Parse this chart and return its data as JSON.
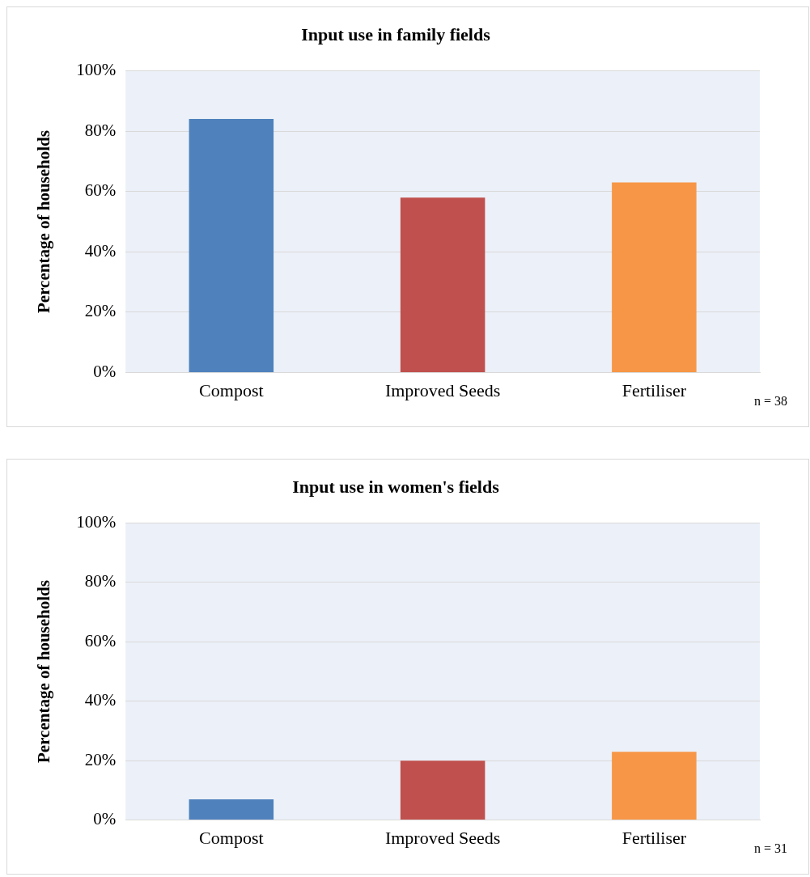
{
  "chart_data": [
    {
      "type": "bar",
      "title": "Input use in family fields",
      "ylabel": "Percentage of households",
      "categories": [
        "Compost",
        "Improved Seeds",
        "Fertiliser"
      ],
      "values": [
        84,
        58,
        63
      ],
      "colors": [
        "#4f81bd",
        "#c0504d",
        "#f79646"
      ],
      "ylim": [
        0,
        100
      ],
      "yticks": [
        {
          "value": 0,
          "label": "0%"
        },
        {
          "value": 20,
          "label": "20%"
        },
        {
          "value": 40,
          "label": "40%"
        },
        {
          "value": 60,
          "label": "60%"
        },
        {
          "value": 80,
          "label": "80%"
        },
        {
          "value": 100,
          "label": "100%"
        }
      ],
      "grid": "y",
      "legend": false,
      "annotations": [
        "n = 38"
      ]
    },
    {
      "type": "bar",
      "title": "Input use in women's fields",
      "ylabel": "Percentage of households",
      "categories": [
        "Compost",
        "Improved Seeds",
        "Fertiliser"
      ],
      "values": [
        7,
        20,
        23
      ],
      "colors": [
        "#4f81bd",
        "#c0504d",
        "#f79646"
      ],
      "ylim": [
        0,
        100
      ],
      "yticks": [
        {
          "value": 0,
          "label": "0%"
        },
        {
          "value": 20,
          "label": "20%"
        },
        {
          "value": 40,
          "label": "40%"
        },
        {
          "value": 60,
          "label": "60%"
        },
        {
          "value": 80,
          "label": "80%"
        },
        {
          "value": 100,
          "label": "100%"
        }
      ],
      "grid": "y",
      "legend": false,
      "annotations": [
        "n = 31"
      ]
    }
  ]
}
